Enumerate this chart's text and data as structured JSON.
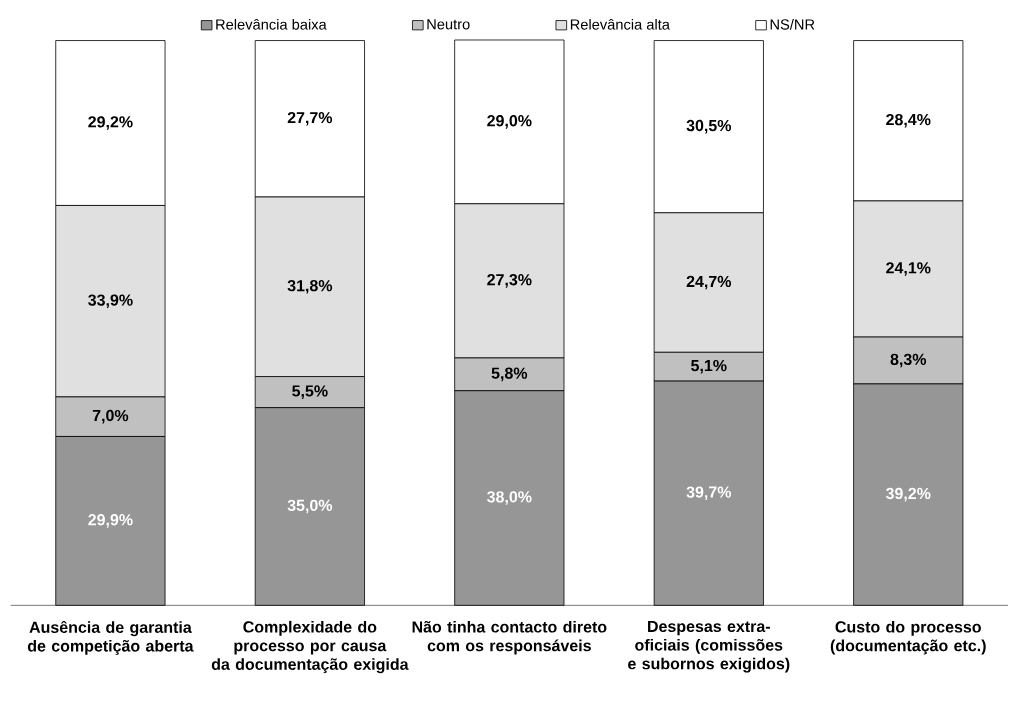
{
  "chart_data": {
    "type": "bar",
    "stacked": true,
    "legend": "top",
    "categories": [
      "Ausência de garantia de competição aberta",
      "Complexidade do processo por causa da documentação exigida",
      "Não tinha contacto direto com os responsáveis",
      "Despesas extra-oficiais (comissões e subornos exigidos)",
      "Custo do processo (documentação etc.)"
    ],
    "series": [
      {
        "name": "Relevância baixa",
        "color": "#969696",
        "values": [
          29.9,
          35.0,
          38.0,
          39.7,
          39.2
        ],
        "value_labels": [
          "29,9%",
          "35,0%",
          "38,0%",
          "39,7%",
          "39,2%"
        ]
      },
      {
        "name": "Neutro",
        "color": "#c0c0c0",
        "values": [
          7.0,
          5.5,
          5.8,
          5.1,
          8.3
        ],
        "value_labels": [
          "7,0%",
          "5,5%",
          "5,8%",
          "5,1%",
          "8,3%"
        ]
      },
      {
        "name": "Relevância alta",
        "color": "#e0e0e0",
        "values": [
          33.9,
          31.8,
          27.3,
          24.7,
          24.1
        ],
        "value_labels": [
          "33,9%",
          "31,8%",
          "27,3%",
          "24,7%",
          "24,1%"
        ]
      },
      {
        "name": "NS/NR",
        "color": "#ffffff",
        "values": [
          29.2,
          27.7,
          29.0,
          30.5,
          28.4
        ],
        "value_labels": [
          "29,2%",
          "27,7%",
          "29,0%",
          "30,5%",
          "28,4%"
        ]
      }
    ]
  }
}
